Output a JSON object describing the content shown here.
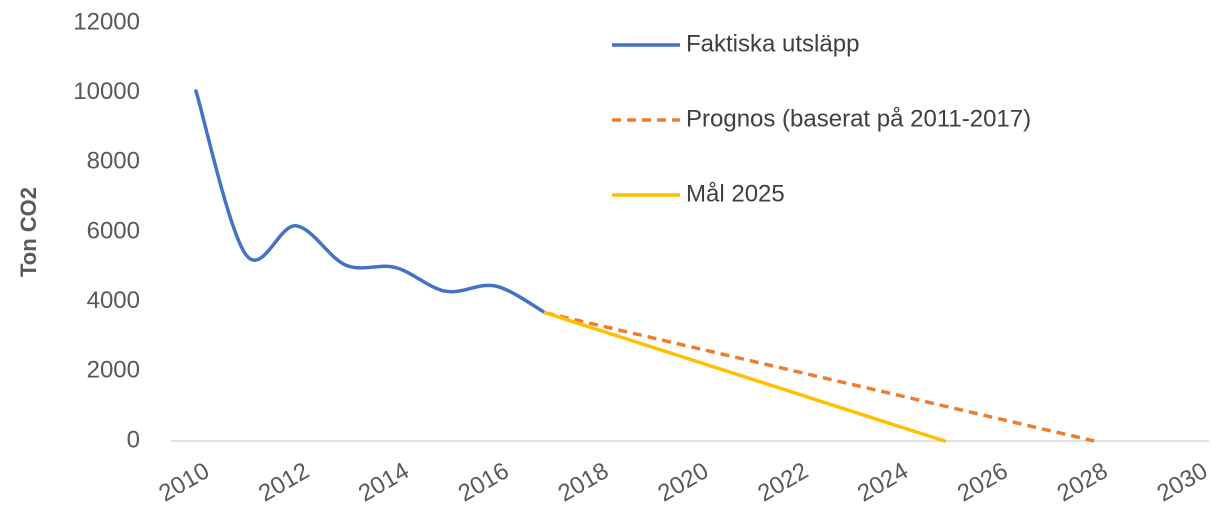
{
  "chart_data": {
    "type": "line",
    "y_label": "Ton CO2",
    "xlim": [
      2009.5,
      2030.3
    ],
    "xticks": [
      2010,
      2012,
      2014,
      2016,
      2018,
      2020,
      2022,
      2024,
      2026,
      2028,
      2030
    ],
    "ylim": [
      0,
      12000
    ],
    "yticks": [
      0,
      2000,
      4000,
      6000,
      8000,
      10000,
      12000
    ],
    "grid": false,
    "legend": "top-right",
    "series": [
      {
        "name": "Faktiska utsläpp",
        "color": "#4472c4",
        "dash": false,
        "smooth": true,
        "x": [
          2010,
          2011,
          2012,
          2013,
          2014,
          2015,
          2016,
          2017
        ],
        "values": [
          10050,
          5350,
          6180,
          5050,
          4980,
          4300,
          4450,
          3680
        ]
      },
      {
        "name": "Prognos (baserat på 2011-2017)",
        "color": "#ed7d31",
        "dash": true,
        "smooth": false,
        "x": [
          2017,
          2028
        ],
        "values": [
          3680,
          0
        ]
      },
      {
        "name": "Mål 2025",
        "color": "#ffc000",
        "dash": false,
        "smooth": false,
        "x": [
          2017,
          2025
        ],
        "values": [
          3680,
          0
        ]
      }
    ]
  }
}
